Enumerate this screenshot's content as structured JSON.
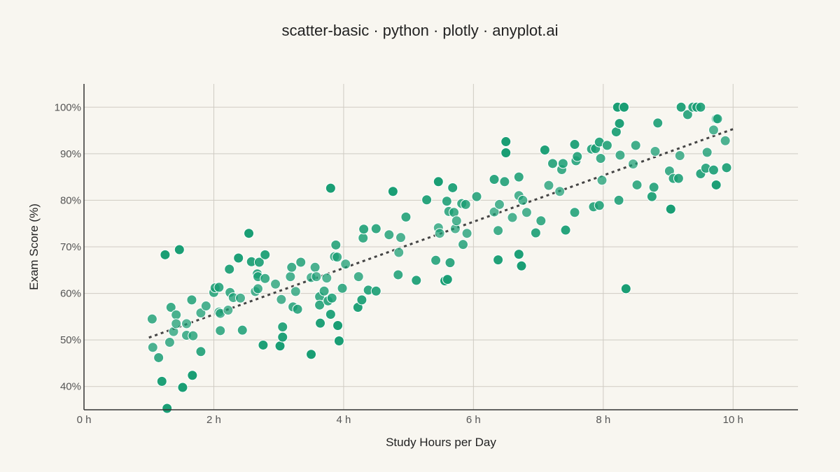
{
  "chart_data": {
    "type": "scatter",
    "title": "scatter-basic · python · plotly · anyplot.ai",
    "xlabel": "Study Hours per Day",
    "ylabel": "Exam Score (%)",
    "x_tick_labels": [
      "0 h",
      "2 h",
      "4 h",
      "6 h",
      "8 h",
      "10 h"
    ],
    "x_ticks": [
      0,
      2,
      4,
      6,
      8,
      10
    ],
    "y_tick_labels": [
      "40%",
      "50%",
      "60%",
      "70%",
      "80%",
      "90%",
      "100%"
    ],
    "y_ticks": [
      40,
      50,
      60,
      70,
      80,
      90,
      100
    ],
    "xlim": [
      0,
      11
    ],
    "ylim": [
      35,
      105
    ],
    "grid": true,
    "legend": "none",
    "marker_color": "#1a9e74",
    "trendline": {
      "x": [
        1.0,
        10.0
      ],
      "y": [
        50.5,
        95.3
      ],
      "style": "dotted",
      "color": "#444444"
    },
    "points": [
      [
        1.05,
        54.5
      ],
      [
        1.06,
        48.4
      ],
      [
        1.15,
        46.2
      ],
      [
        1.2,
        41.1
      ],
      [
        1.25,
        68.3
      ],
      [
        1.28,
        35.3
      ],
      [
        1.32,
        49.5
      ],
      [
        1.34,
        57.0
      ],
      [
        1.38,
        51.8
      ],
      [
        1.42,
        55.4
      ],
      [
        1.42,
        53.5
      ],
      [
        1.47,
        69.4
      ],
      [
        1.52,
        39.8
      ],
      [
        1.58,
        53.5
      ],
      [
        1.58,
        51.0
      ],
      [
        1.66,
        58.6
      ],
      [
        1.67,
        42.4
      ],
      [
        1.68,
        50.9
      ],
      [
        1.8,
        47.5
      ],
      [
        1.8,
        55.8
      ],
      [
        1.88,
        57.3
      ],
      [
        2.0,
        60.2
      ],
      [
        2.02,
        61.2
      ],
      [
        2.08,
        61.3
      ],
      [
        2.08,
        56.0
      ],
      [
        2.1,
        52.0
      ],
      [
        2.1,
        55.7
      ],
      [
        2.22,
        56.4
      ],
      [
        2.24,
        65.2
      ],
      [
        2.25,
        60.2
      ],
      [
        2.3,
        59.1
      ],
      [
        2.38,
        67.6
      ],
      [
        2.41,
        59.0
      ],
      [
        2.44,
        52.1
      ],
      [
        2.54,
        72.9
      ],
      [
        2.58,
        66.8
      ],
      [
        2.64,
        60.4
      ],
      [
        2.67,
        64.2
      ],
      [
        2.68,
        63.6
      ],
      [
        2.68,
        61.0
      ],
      [
        2.7,
        66.7
      ],
      [
        2.76,
        48.9
      ],
      [
        2.79,
        63.2
      ],
      [
        2.79,
        68.3
      ],
      [
        2.95,
        62.0
      ],
      [
        3.02,
        48.7
      ],
      [
        3.04,
        58.7
      ],
      [
        3.06,
        52.8
      ],
      [
        3.06,
        50.6
      ],
      [
        3.18,
        63.6
      ],
      [
        3.2,
        65.6
      ],
      [
        3.22,
        57.1
      ],
      [
        3.26,
        60.4
      ],
      [
        3.29,
        56.6
      ],
      [
        3.34,
        66.7
      ],
      [
        3.5,
        63.4
      ],
      [
        3.5,
        46.9
      ],
      [
        3.56,
        65.6
      ],
      [
        3.58,
        63.6
      ],
      [
        3.63,
        59.3
      ],
      [
        3.63,
        57.5
      ],
      [
        3.64,
        53.6
      ],
      [
        3.7,
        60.5
      ],
      [
        3.74,
        63.3
      ],
      [
        3.76,
        58.4
      ],
      [
        3.8,
        55.5
      ],
      [
        3.8,
        82.6
      ],
      [
        3.82,
        59.0
      ],
      [
        3.86,
        67.9
      ],
      [
        3.88,
        70.4
      ],
      [
        3.9,
        67.8
      ],
      [
        3.91,
        53.1
      ],
      [
        3.93,
        49.8
      ],
      [
        3.98,
        61.1
      ],
      [
        4.03,
        66.3
      ],
      [
        4.22,
        57.0
      ],
      [
        4.23,
        63.6
      ],
      [
        4.28,
        58.6
      ],
      [
        4.3,
        71.9
      ],
      [
        4.31,
        73.8
      ],
      [
        4.38,
        60.7
      ],
      [
        4.5,
        60.5
      ],
      [
        4.5,
        73.9
      ],
      [
        4.7,
        72.6
      ],
      [
        4.76,
        81.9
      ],
      [
        4.84,
        64.0
      ],
      [
        4.85,
        68.8
      ],
      [
        4.88,
        72.0
      ],
      [
        4.96,
        76.4
      ],
      [
        5.12,
        62.8
      ],
      [
        5.28,
        80.1
      ],
      [
        5.42,
        67.1
      ],
      [
        5.46,
        74.1
      ],
      [
        5.46,
        84.0
      ],
      [
        5.48,
        72.9
      ],
      [
        5.56,
        62.7
      ],
      [
        5.59,
        79.8
      ],
      [
        5.6,
        63.0
      ],
      [
        5.62,
        77.6
      ],
      [
        5.64,
        66.6
      ],
      [
        5.68,
        82.7
      ],
      [
        5.7,
        77.4
      ],
      [
        5.72,
        73.9
      ],
      [
        5.74,
        75.6
      ],
      [
        5.82,
        79.3
      ],
      [
        5.84,
        70.5
      ],
      [
        5.88,
        79.1
      ],
      [
        5.9,
        72.9
      ],
      [
        6.05,
        80.8
      ],
      [
        6.32,
        84.5
      ],
      [
        6.32,
        77.5
      ],
      [
        6.38,
        73.5
      ],
      [
        6.38,
        67.2
      ],
      [
        6.4,
        79.1
      ],
      [
        6.48,
        84.0
      ],
      [
        6.5,
        90.2
      ],
      [
        6.5,
        92.6
      ],
      [
        6.6,
        76.3
      ],
      [
        6.7,
        85.0
      ],
      [
        6.7,
        81.0
      ],
      [
        6.7,
        68.4
      ],
      [
        6.74,
        65.9
      ],
      [
        6.76,
        80.0
      ],
      [
        6.82,
        77.4
      ],
      [
        6.96,
        73.0
      ],
      [
        7.04,
        75.6
      ],
      [
        7.1,
        90.8
      ],
      [
        7.16,
        83.2
      ],
      [
        7.22,
        87.9
      ],
      [
        7.33,
        81.9
      ],
      [
        7.36,
        86.6
      ],
      [
        7.38,
        87.9
      ],
      [
        7.42,
        73.6
      ],
      [
        7.56,
        77.4
      ],
      [
        7.56,
        92.0
      ],
      [
        7.58,
        88.5
      ],
      [
        7.6,
        89.4
      ],
      [
        7.82,
        91.0
      ],
      [
        7.85,
        78.6
      ],
      [
        7.88,
        91.1
      ],
      [
        7.94,
        92.5
      ],
      [
        7.94,
        78.9
      ],
      [
        7.96,
        89.0
      ],
      [
        7.98,
        84.3
      ],
      [
        8.06,
        91.8
      ],
      [
        8.2,
        94.7
      ],
      [
        8.22,
        100.0
      ],
      [
        8.24,
        80.0
      ],
      [
        8.25,
        96.5
      ],
      [
        8.26,
        89.7
      ],
      [
        8.32,
        100.0
      ],
      [
        8.35,
        61.0
      ],
      [
        8.46,
        87.8
      ],
      [
        8.5,
        91.8
      ],
      [
        8.52,
        83.3
      ],
      [
        8.75,
        80.8
      ],
      [
        8.78,
        82.8
      ],
      [
        8.8,
        90.5
      ],
      [
        8.84,
        96.6
      ],
      [
        9.02,
        86.3
      ],
      [
        9.04,
        78.1
      ],
      [
        9.08,
        84.7
      ],
      [
        9.16,
        84.7
      ],
      [
        9.18,
        89.6
      ],
      [
        9.2,
        100.0
      ],
      [
        9.3,
        98.4
      ],
      [
        9.38,
        100.0
      ],
      [
        9.44,
        100.0
      ],
      [
        9.44,
        100.0
      ],
      [
        9.5,
        100.0
      ],
      [
        9.5,
        85.7
      ],
      [
        9.58,
        86.9
      ],
      [
        9.6,
        90.3
      ],
      [
        9.7,
        86.5
      ],
      [
        9.7,
        95.1
      ],
      [
        9.74,
        83.3
      ],
      [
        9.74,
        97.5
      ],
      [
        9.76,
        97.5
      ],
      [
        9.88,
        92.8
      ],
      [
        9.9,
        87.0
      ]
    ]
  }
}
